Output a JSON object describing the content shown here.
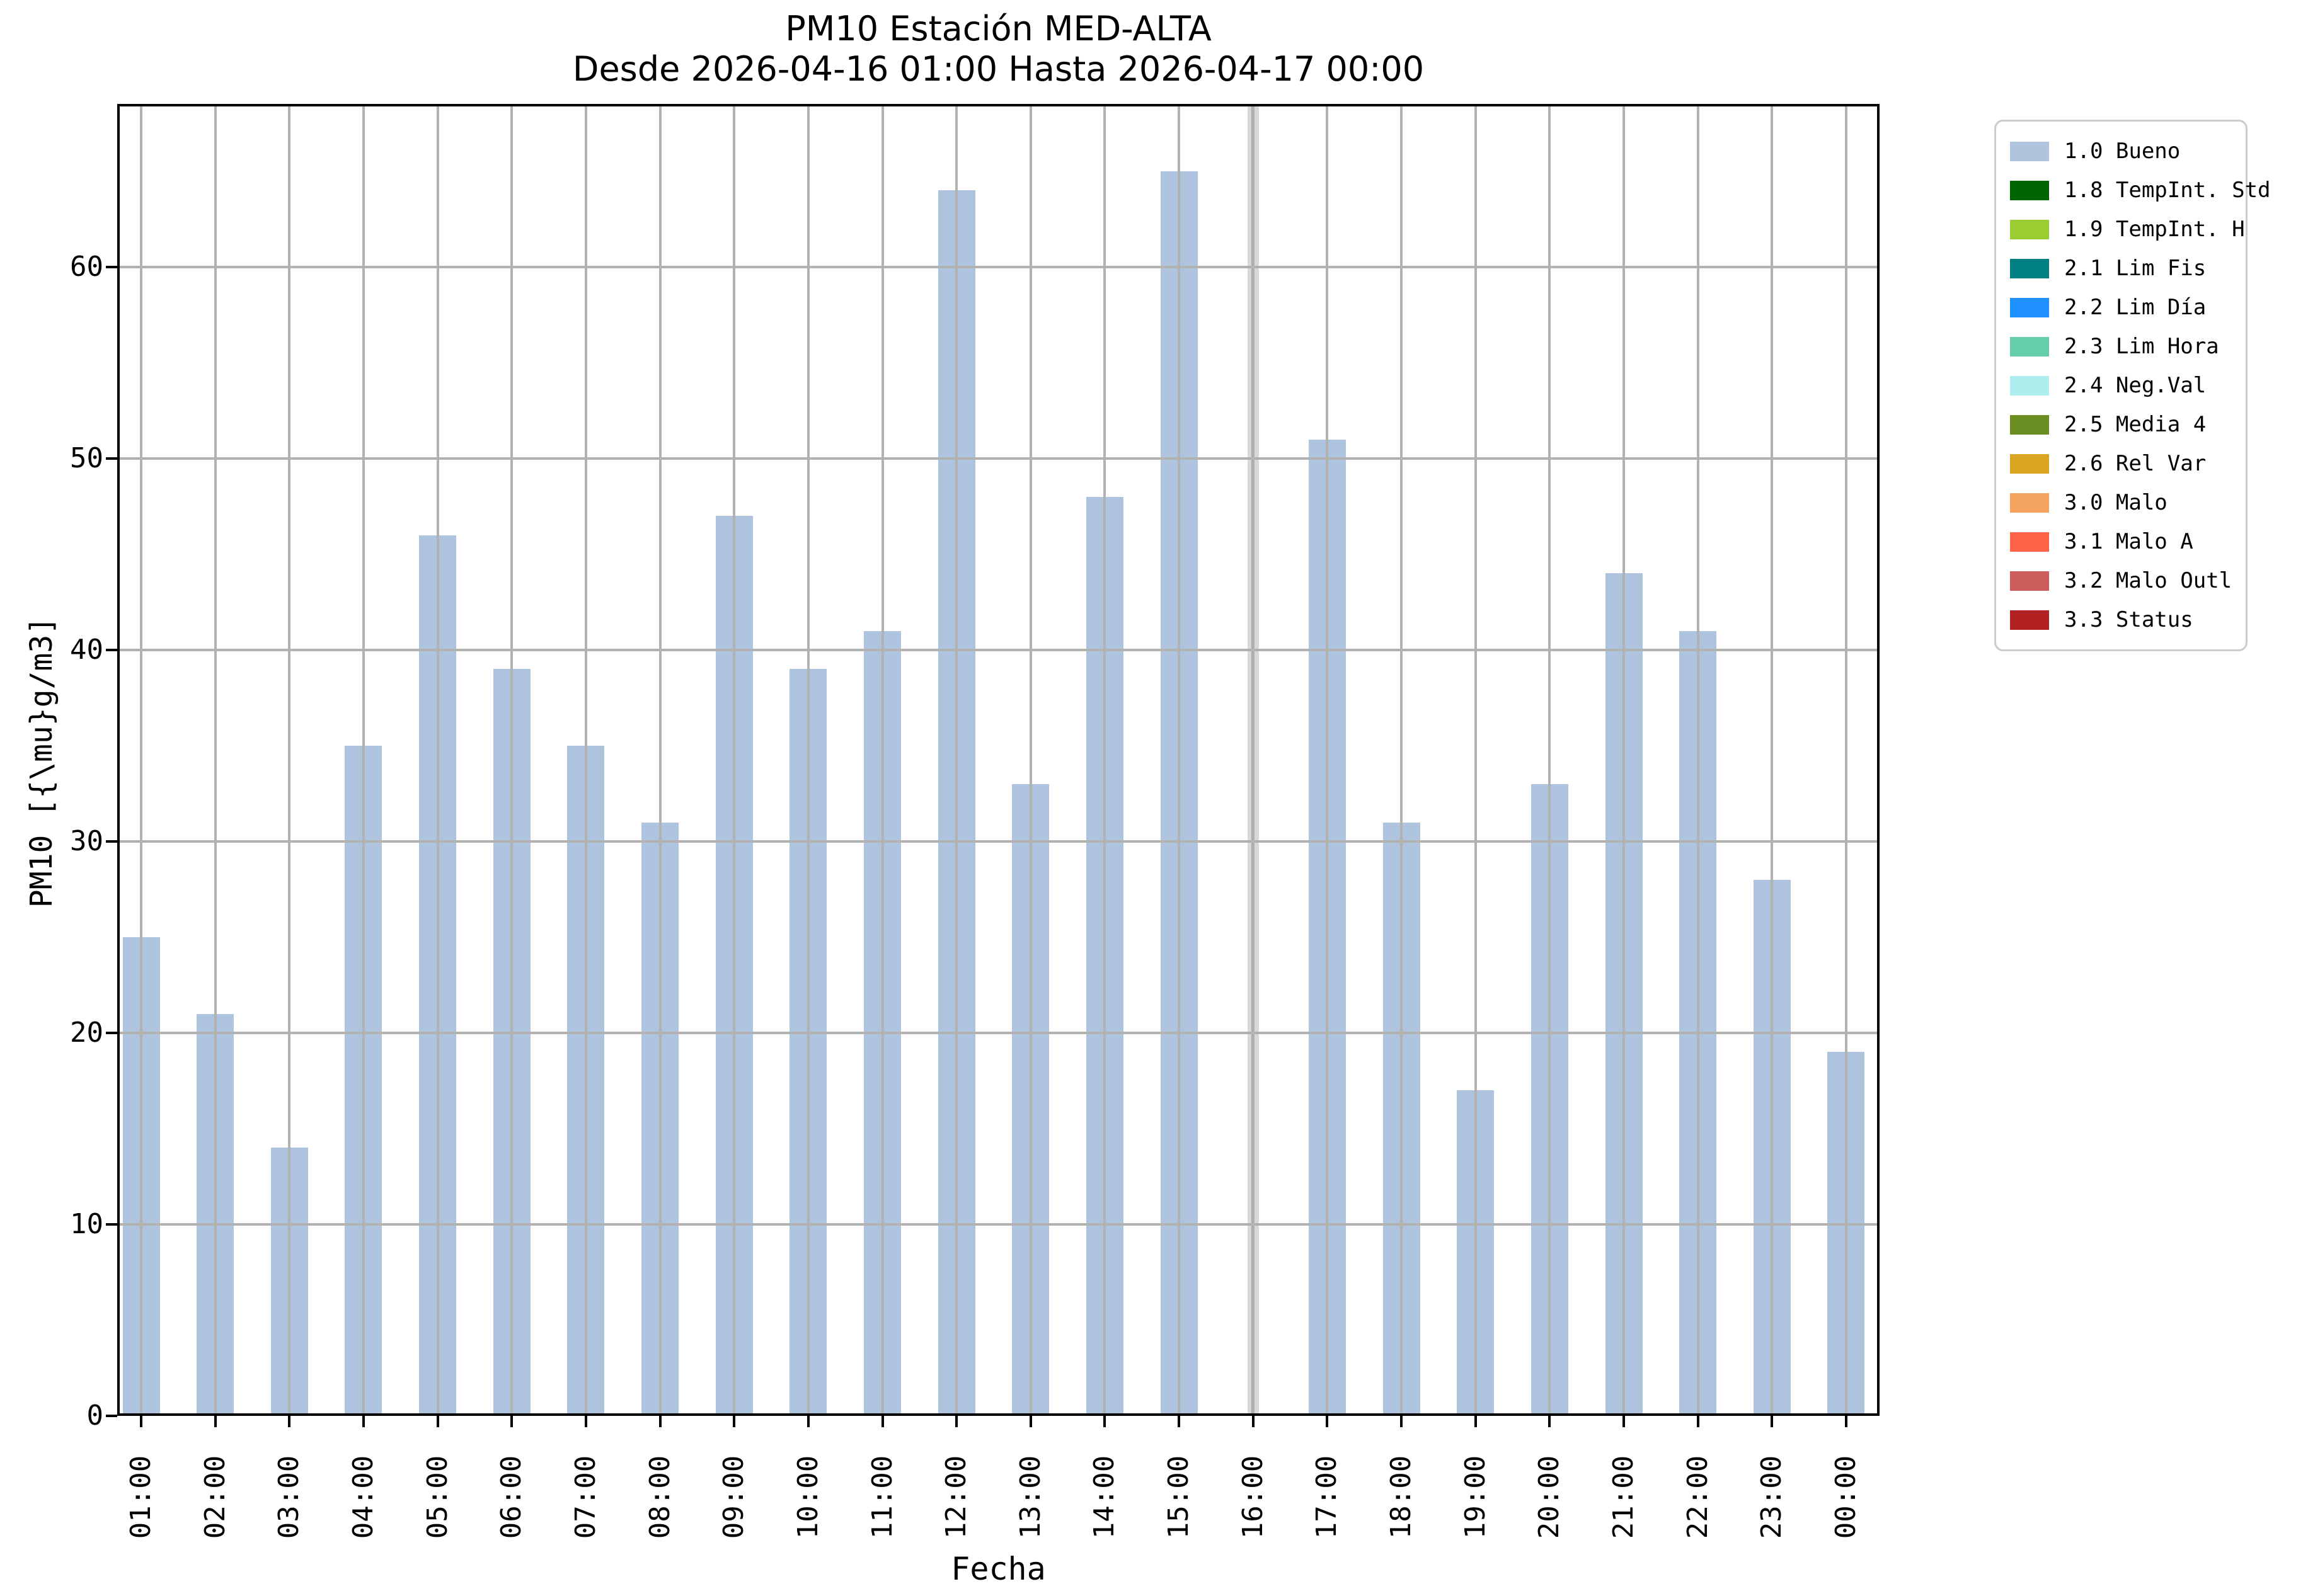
{
  "chart_data": {
    "type": "bar",
    "title": "PM10 Estación MED-ALTA",
    "subtitle": "Desde 2026-04-16 01:00 Hasta 2026-04-17 00:00",
    "xlabel": "Fecha",
    "ylabel": "PM10 [{\\mu}g/m3]",
    "categories": [
      "01:00",
      "02:00",
      "03:00",
      "04:00",
      "05:00",
      "06:00",
      "07:00",
      "08:00",
      "09:00",
      "10:00",
      "11:00",
      "12:00",
      "13:00",
      "14:00",
      "15:00",
      "16:00",
      "17:00",
      "18:00",
      "19:00",
      "20:00",
      "21:00",
      "22:00",
      "23:00",
      "00:00"
    ],
    "values": [
      25,
      21,
      14,
      35,
      46,
      39,
      35,
      31,
      47,
      39,
      41,
      64,
      33,
      48,
      65,
      null,
      51,
      31,
      17,
      33,
      44,
      41,
      28,
      19
    ],
    "missing": {
      "category": "16:00",
      "marker": "gray-vertical-band"
    },
    "yticks": [
      0,
      10,
      20,
      30,
      40,
      50,
      60
    ],
    "ylim": [
      0,
      68.5
    ],
    "grid": true,
    "grid_on_top_of_bars": true,
    "bar_color": "#aec4de",
    "grid_color": "#b2b2b2",
    "missing_band_color": "#d8d8d8",
    "axis_color": "#000000",
    "legend_position": "outside-right",
    "legend": [
      {
        "label": "1.0 Bueno",
        "color": "#b0c4de"
      },
      {
        "label": "1.8 TempInt. Std",
        "color": "#006400"
      },
      {
        "label": "1.9 TempInt. H",
        "color": "#9acd32"
      },
      {
        "label": "2.1 Lim Fis",
        "color": "#008080"
      },
      {
        "label": "2.2 Lim Día",
        "color": "#1e90ff"
      },
      {
        "label": "2.3 Lim Hora",
        "color": "#66cdaa"
      },
      {
        "label": "2.4 Neg.Val",
        "color": "#afeeee"
      },
      {
        "label": "2.5 Media 4",
        "color": "#6b8e23"
      },
      {
        "label": "2.6 Rel Var",
        "color": "#daa520"
      },
      {
        "label": "3.0 Malo",
        "color": "#f4a460"
      },
      {
        "label": "3.1 Malo A",
        "color": "#ff6347"
      },
      {
        "label": "3.2 Malo Outl",
        "color": "#cd5c5c"
      },
      {
        "label": "3.3 Status",
        "color": "#b22222"
      }
    ]
  }
}
